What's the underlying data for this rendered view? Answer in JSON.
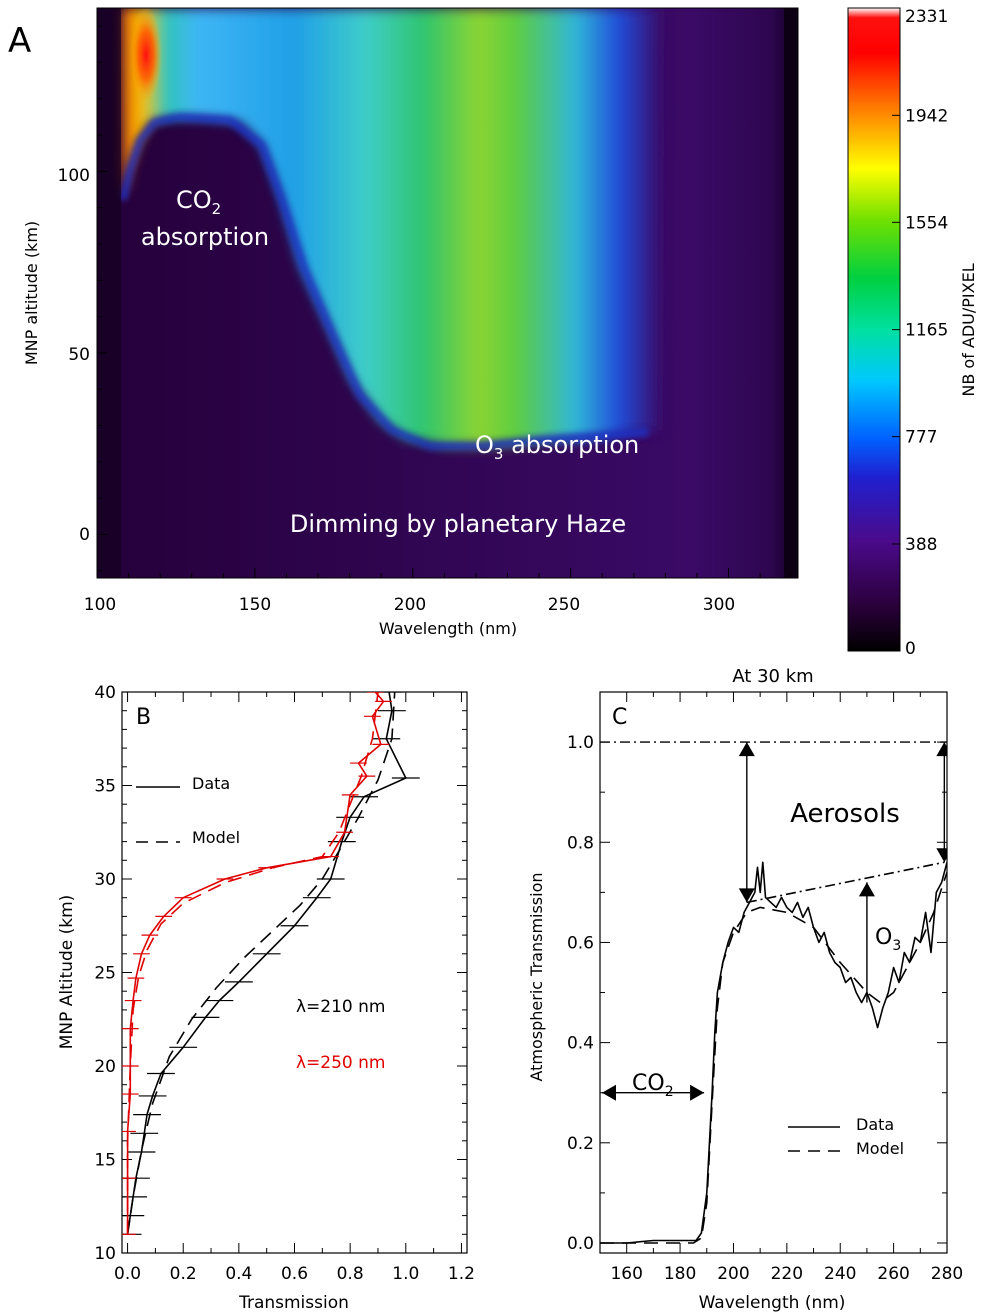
{
  "panel_a": {
    "letter": "A",
    "xlabel": "Wavelength (nm)",
    "ylabel": "MNP altitude (km)",
    "xticks": [
      "100",
      "150",
      "200",
      "250",
      "300"
    ],
    "yticks": [
      "0",
      "50",
      "100"
    ],
    "colorbar_label": "NB of ADU/PIXEL",
    "colorbar_ticks": [
      "0",
      "388",
      "777",
      "1165",
      "1554",
      "1942",
      "2331"
    ],
    "ann_co2_formula": "CO",
    "ann_co2_sub": "2",
    "ann_co2_word": "absorption",
    "ann_o3_formula": "O",
    "ann_o3_sub": "3",
    "ann_o3_word": " absorption",
    "ann_haze": "Dimming by planetary Haze"
  },
  "panel_b": {
    "letter": "B",
    "xlabel": "Transmission",
    "ylabel": "MNP Altitude (km)",
    "xticks": [
      "0.0",
      "0.2",
      "0.4",
      "0.6",
      "0.8",
      "1.0",
      "1.2"
    ],
    "yticks": [
      "10",
      "15",
      "20",
      "25",
      "30",
      "35",
      "40"
    ],
    "legend_data": "Data",
    "legend_model": "Model",
    "lambda_210": "λ=210 nm",
    "lambda_250": "λ=250 nm"
  },
  "panel_c": {
    "letter": "C",
    "title": "At 30 km",
    "xlabel": "Wavelength (nm)",
    "ylabel": "Atmospheric Transmission",
    "xticks": [
      "160",
      "180",
      "200",
      "220",
      "240",
      "260",
      "280"
    ],
    "yticks": [
      "0.0",
      "0.2",
      "0.4",
      "0.6",
      "0.8",
      "1.0"
    ],
    "ann_aerosols": "Aerosols",
    "ann_o3_formula": "O",
    "ann_o3_sub": "3",
    "ann_co2_formula": "CO",
    "ann_co2_sub": "2",
    "legend_data": "Data",
    "legend_model": "Model"
  },
  "colors": {
    "red_series": "#e00000",
    "black_series": "#000000"
  },
  "chart_data": [
    {
      "type": "heatmap",
      "xlim": [
        100,
        322
      ],
      "ylim": [
        -12,
        145
      ],
      "color_range": [
        0,
        2331
      ],
      "colormap": "rainbow (black-purple-blue-cyan-green-yellow-red-white)",
      "absorption_edge_altitude_km": [
        [
          108,
          88
        ],
        [
          115,
          110
        ],
        [
          125,
          115
        ],
        [
          140,
          114
        ],
        [
          150,
          104
        ],
        [
          160,
          86
        ],
        [
          170,
          64
        ],
        [
          180,
          40
        ],
        [
          190,
          29
        ],
        [
          200,
          25
        ],
        [
          210,
          25
        ],
        [
          230,
          27
        ],
        [
          260,
          29
        ],
        [
          268,
          30
        ]
      ]
    },
    {
      "type": "line",
      "xlabel": "Transmission",
      "ylabel": "MNP Altitude (km)",
      "xlim": [
        -0.02,
        1.22
      ],
      "ylim": [
        10,
        40
      ],
      "series": [
        {
          "name": "λ=210 nm",
          "style": "solid",
          "color": "#000000",
          "x": [
            0.0,
            0.01,
            0.02,
            0.03,
            0.05,
            0.06,
            0.07,
            0.09,
            0.12,
            0.2,
            0.28,
            0.33,
            0.4,
            0.5,
            0.6,
            0.68,
            0.73,
            0.77,
            0.8,
            0.85,
            1.0,
            0.93,
            0.95,
            0.94
          ],
          "y": [
            11,
            12,
            13,
            14,
            15.4,
            16.4,
            17.4,
            18.4,
            19.6,
            21,
            22.6,
            23.5,
            24.5,
            26,
            27.5,
            29,
            30,
            32,
            33.3,
            34.4,
            35.4,
            37.5,
            39,
            40
          ]
        },
        {
          "name": "λ=210 nm model",
          "style": "dashed",
          "color": "#000000",
          "x": [
            0.0,
            0.02,
            0.05,
            0.09,
            0.15,
            0.23,
            0.32,
            0.42,
            0.52,
            0.62,
            0.7,
            0.76,
            0.83,
            0.9,
            0.95,
            0.96
          ],
          "y": [
            11,
            13,
            15.5,
            18,
            20.5,
            22.5,
            24.2,
            25.8,
            27.2,
            28.6,
            30,
            31.5,
            33.3,
            35.3,
            37.5,
            40
          ]
        },
        {
          "name": "λ=250 nm",
          "style": "solid",
          "color": "#e00000",
          "x": [
            0.0,
            0.0,
            0.0,
            0.01,
            0.01,
            0.01,
            0.02,
            0.03,
            0.05,
            0.08,
            0.13,
            0.2,
            0.35,
            0.5,
            0.73,
            0.78,
            0.8,
            0.86,
            0.83,
            0.91,
            0.88,
            0.92,
            0.89
          ],
          "y": [
            11,
            14,
            16.5,
            18.5,
            20,
            22,
            23.5,
            24.7,
            26,
            27,
            28,
            29,
            30,
            30.6,
            31.2,
            32.5,
            34.5,
            35.5,
            36.2,
            37.2,
            38.7,
            39.5,
            40
          ]
        },
        {
          "name": "λ=250 nm model",
          "style": "dashed",
          "color": "#e00000",
          "x": [
            0.0,
            0.0,
            0.01,
            0.02,
            0.04,
            0.07,
            0.12,
            0.2,
            0.35,
            0.52,
            0.7,
            0.76,
            0.8,
            0.84,
            0.88,
            0.9
          ],
          "y": [
            11,
            16,
            20,
            23,
            24.8,
            26.2,
            27.6,
            28.7,
            29.8,
            30.6,
            31.2,
            32.5,
            34,
            35.5,
            37.5,
            40
          ]
        }
      ]
    },
    {
      "type": "line",
      "title": "At 30 km",
      "xlabel": "Wavelength (nm)",
      "ylabel": "Atmospheric Transmission",
      "xlim": [
        150,
        280
      ],
      "ylim": [
        -0.02,
        1.1
      ],
      "series": [
        {
          "name": "Data",
          "style": "solid",
          "color": "#000000",
          "x": [
            150,
            160,
            170,
            180,
            186,
            188,
            190,
            192,
            193,
            194,
            196,
            198,
            200,
            202,
            204,
            206,
            208,
            209,
            210,
            211,
            212,
            214,
            216,
            218,
            220,
            222,
            224,
            226,
            228,
            230,
            232,
            234,
            236,
            238,
            240,
            242,
            244,
            246,
            248,
            250,
            252,
            254,
            256,
            258,
            260,
            262,
            264,
            266,
            268,
            270,
            272,
            274,
            276,
            278,
            280
          ],
          "y": [
            0.0,
            0.0,
            0.005,
            0.005,
            0.005,
            0.02,
            0.1,
            0.3,
            0.42,
            0.5,
            0.56,
            0.6,
            0.63,
            0.62,
            0.66,
            0.68,
            0.7,
            0.75,
            0.7,
            0.76,
            0.69,
            0.68,
            0.67,
            0.69,
            0.67,
            0.66,
            0.68,
            0.65,
            0.67,
            0.63,
            0.6,
            0.62,
            0.58,
            0.56,
            0.55,
            0.52,
            0.53,
            0.5,
            0.48,
            0.5,
            0.47,
            0.43,
            0.47,
            0.5,
            0.55,
            0.52,
            0.58,
            0.56,
            0.61,
            0.6,
            0.66,
            0.58,
            0.7,
            0.72,
            0.76
          ]
        },
        {
          "name": "Model",
          "style": "dashed",
          "color": "#000000",
          "x": [
            150,
            185,
            188,
            190,
            192,
            194,
            196,
            200,
            205,
            210,
            220,
            230,
            240,
            250,
            255,
            260,
            265,
            270,
            275,
            280
          ],
          "y": [
            0.0,
            0.0,
            0.01,
            0.08,
            0.28,
            0.47,
            0.56,
            0.62,
            0.66,
            0.67,
            0.66,
            0.63,
            0.56,
            0.5,
            0.48,
            0.5,
            0.55,
            0.6,
            0.66,
            0.74
          ]
        }
      ],
      "reference_lines": [
        {
          "style": "dash-dot",
          "y": 1.0
        },
        {
          "style": "dash-dot",
          "x": [
            205,
            279
          ],
          "y": [
            0.68,
            0.76
          ]
        }
      ],
      "arrows": [
        {
          "x": 205,
          "from": 0.68,
          "to": 1.0
        },
        {
          "x": 279,
          "from": 0.76,
          "to": 1.0
        },
        {
          "x": 250,
          "from": 0.48,
          "to": 0.72
        },
        {
          "y": 0.3,
          "from_x": 150,
          "to_x": 189
        }
      ]
    }
  ]
}
